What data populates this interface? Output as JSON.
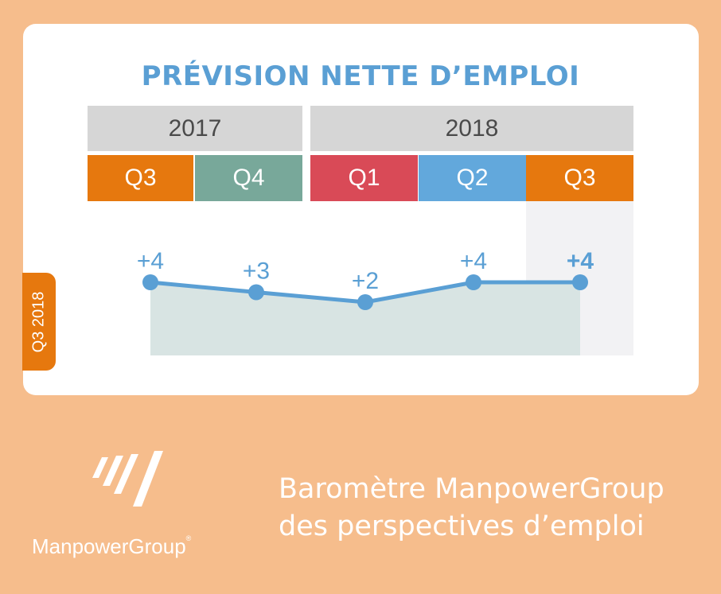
{
  "header": {
    "title": "PRÉVISION NETTE D’EMPLOI"
  },
  "years": [
    {
      "label": "2017",
      "color": "#d6d6d6"
    },
    {
      "label": "2018",
      "color": "#d6d6d6"
    }
  ],
  "quarters": [
    {
      "label": "Q3",
      "color": "#e6780e"
    },
    {
      "label": "Q4",
      "color": "#78a89a"
    },
    {
      "label": "Q1",
      "color": "#d94a57"
    },
    {
      "label": "Q2",
      "color": "#62a8dc"
    },
    {
      "label": "Q3",
      "color": "#e6780e"
    }
  ],
  "side_tab": {
    "label": "Q3 2018",
    "color": "#e6780e"
  },
  "chart_data": {
    "type": "line",
    "categories": [
      "Q3 2017",
      "Q4 2017",
      "Q1 2018",
      "Q2 2018",
      "Q3 2018"
    ],
    "values": [
      4,
      3,
      2,
      4,
      4
    ],
    "data_labels": [
      "+4",
      "+3",
      "+2",
      "+4",
      "+4"
    ],
    "highlight_index": 4,
    "line_color": "#5a9fd4",
    "area_color": "#d8e4e3",
    "title": "PRÉVISION NETTE D’EMPLOI",
    "xlabel": "",
    "ylabel": "",
    "grid": false
  },
  "footer": {
    "brand": "ManpowerGroup",
    "registered": "®",
    "tagline_line1": "Baromètre ManpowerGroup",
    "tagline_line2": "des perspectives d’emploi"
  },
  "logo": {
    "icon": "manpower-stripes-logo",
    "color": "#ffffff"
  }
}
